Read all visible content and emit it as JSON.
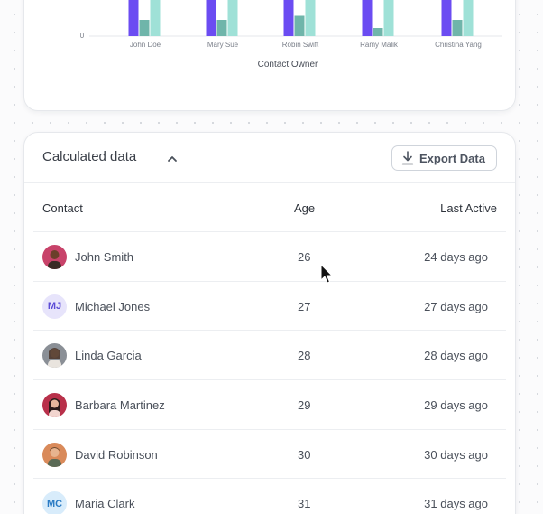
{
  "chart_data": {
    "type": "bar",
    "xlabel": "Contact Owner",
    "categories": [
      "John Doe",
      "Mary Sue",
      "Robin Swift",
      "Ramy Malik",
      "Christina Yang"
    ],
    "y_tick_visible": [
      "0"
    ],
    "series": [
      {
        "values": [
          null,
          null,
          null,
          null,
          null
        ],
        "color": "#6b4cf2"
      },
      {
        "values": [
          4,
          4,
          5,
          2,
          4
        ],
        "color": "#6fb5aa"
      },
      {
        "values": [
          null,
          null,
          null,
          null,
          null
        ],
        "color": "#9fe1d7"
      }
    ],
    "note_partial": "chart cropped at top; tall bars extend beyond the visible area"
  },
  "calculated": {
    "title": "Calculated data",
    "export_label": "Export Data",
    "columns": {
      "contact": "Contact",
      "age": "Age",
      "last_active": "Last Active"
    },
    "rows": [
      {
        "name": "John Smith",
        "age": "26",
        "last_active": "24 days ago",
        "avatar": "photo"
      },
      {
        "name": "Michael Jones",
        "age": "27",
        "last_active": "27 days ago",
        "avatar": "initials",
        "initials": "MJ"
      },
      {
        "name": "Linda Garcia",
        "age": "28",
        "last_active": "28 days ago",
        "avatar": "photo"
      },
      {
        "name": "Barbara Martinez",
        "age": "29",
        "last_active": "29 days ago",
        "avatar": "photo"
      },
      {
        "name": "David Robinson",
        "age": "30",
        "last_active": "30 days ago",
        "avatar": "photo"
      },
      {
        "name": "Maria Clark",
        "age": "31",
        "last_active": "31 days ago",
        "avatar": "initials",
        "initials": "MC"
      }
    ]
  }
}
